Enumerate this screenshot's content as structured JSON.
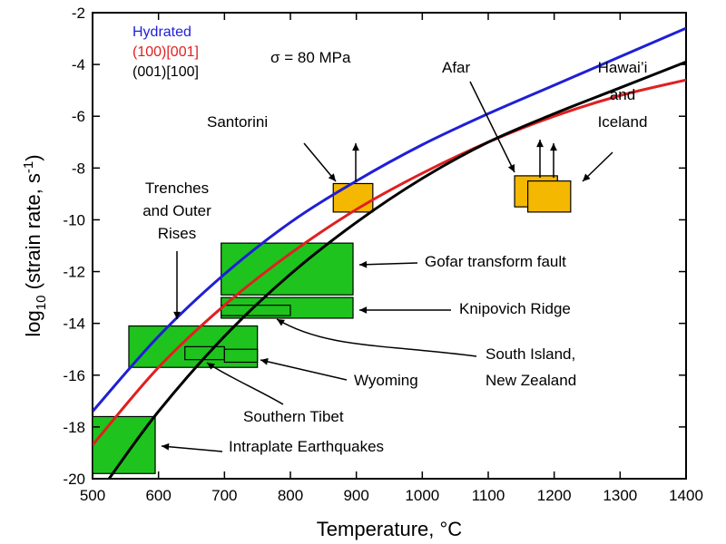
{
  "chart_data": {
    "type": "line",
    "xlabel": "Temperature, °C",
    "ylabel_main": "log",
    "ylabel_sub": "10",
    "ylabel_rest": " (strain rate, s",
    "ylabel_sup": "-1",
    "ylabel_end": ")",
    "xlim": [
      500,
      1400
    ],
    "ylim": [
      -20,
      -2
    ],
    "x_ticks": [
      500,
      600,
      700,
      800,
      900,
      1000,
      1100,
      1200,
      1300,
      1400
    ],
    "y_ticks": [
      -2,
      -4,
      -6,
      -8,
      -10,
      -12,
      -14,
      -16,
      -18,
      -20
    ],
    "legend": {
      "placement": "top-left",
      "entries": [
        {
          "name": "Hydrated",
          "color": "#1f1fd6"
        },
        {
          "name": "(100)[001]",
          "color": "#e02020"
        },
        {
          "name": "(001)[100]",
          "color": "#000000"
        }
      ]
    },
    "stress_label": "σ = 80 MPa",
    "series": [
      {
        "name": "Hydrated",
        "color": "#1f1fd6",
        "x": [
          500,
          600,
          700,
          800,
          900,
          1000,
          1100,
          1200,
          1300,
          1400
        ],
        "y": [
          -17.4,
          -14.5,
          -12.1,
          -10.1,
          -8.5,
          -7.1,
          -5.9,
          -4.8,
          -3.7,
          -2.6
        ]
      },
      {
        "name": "(100)[001]",
        "color": "#e02020",
        "x": [
          500,
          600,
          700,
          800,
          900,
          1000,
          1100,
          1200,
          1300,
          1400
        ],
        "y": [
          -18.7,
          -15.7,
          -13.3,
          -11.3,
          -9.6,
          -8.2,
          -7.0,
          -6.0,
          -5.2,
          -4.6
        ]
      },
      {
        "name": "(001)[100]",
        "color": "#000000",
        "x": [
          525,
          600,
          700,
          800,
          900,
          1000,
          1100,
          1200,
          1300,
          1400
        ],
        "y": [
          -20.0,
          -17.4,
          -14.5,
          -12.1,
          -10.1,
          -8.4,
          -7.0,
          -5.9,
          -4.9,
          -3.9
        ]
      }
    ],
    "regions": [
      {
        "name": "Intraplate Earthquakes",
        "color": "#1ec31e",
        "x0": 500,
        "x1": 595,
        "y0": -19.8,
        "y1": -17.6
      },
      {
        "name": "Trenches and Outer Rises",
        "color": "#1ec31e",
        "x0": 555,
        "x1": 750,
        "y0": -15.7,
        "y1": -14.1
      },
      {
        "name": "Southern Tibet",
        "color": "#1ec31e",
        "x0": 640,
        "x1": 700,
        "y0": -15.4,
        "y1": -14.9
      },
      {
        "name": "Wyoming",
        "color": "#1ec31e",
        "x0": 700,
        "x1": 750,
        "y0": -15.5,
        "y1": -15.0
      },
      {
        "name": "Gofar transform fault",
        "color": "#1ec31e",
        "x0": 695,
        "x1": 895,
        "y0": -12.9,
        "y1": -10.9
      },
      {
        "name": "Knipovich Ridge",
        "color": "#1ec31e",
        "x0": 695,
        "x1": 895,
        "y0": -13.8,
        "y1": -13.0
      },
      {
        "name": "South Island, New Zealand",
        "color": "#1ec31e",
        "x0": 695,
        "x1": 800,
        "y0": -13.7,
        "y1": -13.3
      },
      {
        "name": "Santorini",
        "color": "#f5b800",
        "x0": 865,
        "x1": 925,
        "y0": -9.7,
        "y1": -8.6
      },
      {
        "name": "Afar",
        "color": "#f5b800",
        "x0": 1140,
        "x1": 1205,
        "y0": -9.5,
        "y1": -8.3
      },
      {
        "name": "Hawai'i and Iceland",
        "color": "#f5b800",
        "x0": 1160,
        "x1": 1225,
        "y0": -9.7,
        "y1": -8.5
      }
    ],
    "annotations": {
      "trenches_line1": "Trenches",
      "trenches_line2": "and Outer",
      "trenches_line3": "Rises",
      "santorini": "Santorini",
      "afar": "Afar",
      "hawaii_line1": "Hawai’i",
      "hawaii_line2": "and",
      "hawaii_line3": "Iceland",
      "gofar": "Gofar transform fault",
      "knipovich": "Knipovich Ridge",
      "south_island_line1": "South Island,",
      "south_island_line2": "New Zealand",
      "wyoming": "Wyoming",
      "southern_tibet": "Southern Tibet",
      "intraplate": "Intraplate Earthquakes"
    }
  }
}
